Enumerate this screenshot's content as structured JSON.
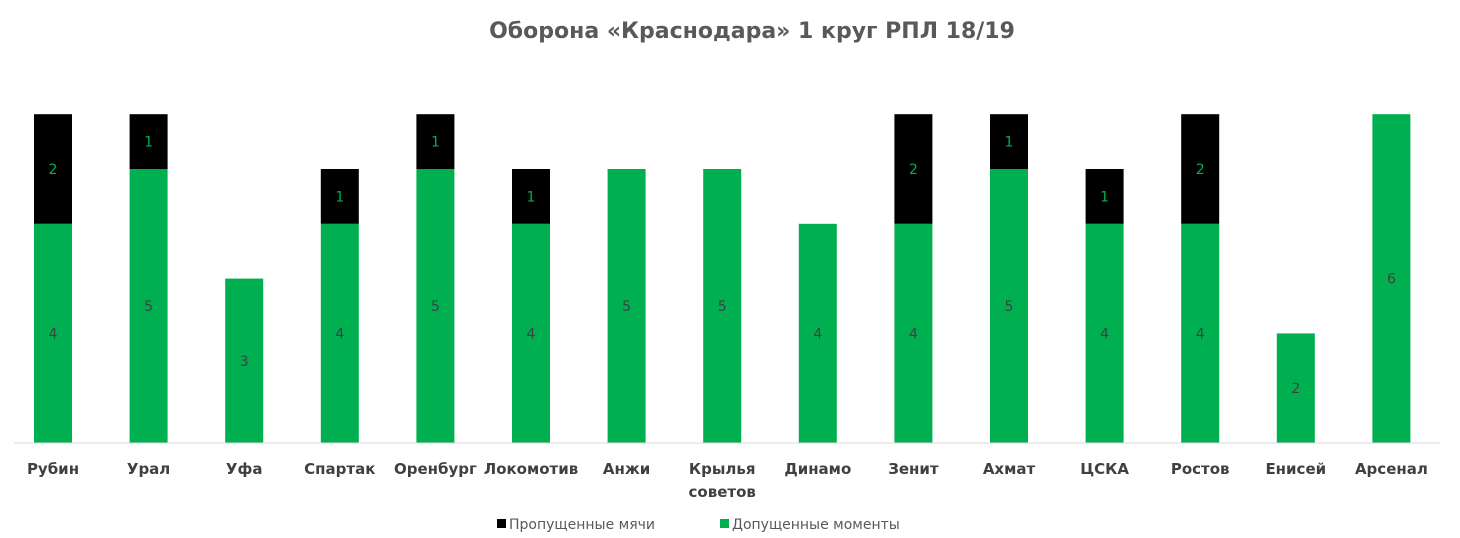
{
  "chart_data": {
    "type": "bar",
    "stacked": true,
    "title": "Оборона «Краснодара» 1 круг РПЛ 18/19",
    "categories": [
      [
        "Рубин"
      ],
      [
        "Урал"
      ],
      [
        "Уфа"
      ],
      [
        "Спартак"
      ],
      [
        "Оренбург"
      ],
      [
        "Локомотив"
      ],
      [
        "Анжи"
      ],
      [
        "Крылья",
        "советов"
      ],
      [
        "Динамо"
      ],
      [
        "Зенит"
      ],
      [
        "Ахмат"
      ],
      [
        "ЦСКА"
      ],
      [
        "Ростов"
      ],
      [
        "Енисей"
      ],
      [
        "Арсенал"
      ]
    ],
    "series": [
      {
        "name": "Допущенные моменты",
        "color": "#00B050",
        "label_color": "#404040",
        "values": [
          4,
          5,
          3,
          4,
          5,
          4,
          5,
          5,
          4,
          4,
          5,
          4,
          4,
          2,
          6
        ]
      },
      {
        "name": "Пропущенные мячи",
        "color": "#000000",
        "label_color": "#00B050",
        "values": [
          2,
          1,
          0,
          1,
          1,
          1,
          0,
          0,
          0,
          2,
          1,
          1,
          2,
          0,
          0
        ]
      }
    ],
    "legend_order": [
      1,
      0
    ],
    "legend_position": "bottom",
    "ylim": [
      0,
      6
    ],
    "grid": false,
    "axis_line_color": "#D9D9D9"
  }
}
